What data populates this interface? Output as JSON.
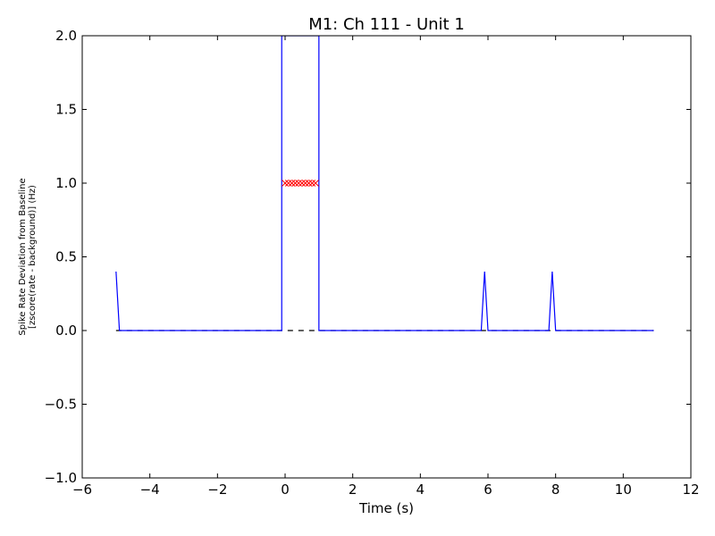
{
  "chart_data": {
    "type": "line",
    "title": "M1: Ch 111 - Unit 1",
    "xlabel": "Time (s)",
    "ylabel_lines": [
      "Spike Rate Deviation from Baseline",
      "[zscore(rate - background)] (Hz)"
    ],
    "xlim": [
      -6,
      12
    ],
    "ylim": [
      -1.0,
      2.0
    ],
    "xticks": [
      -6,
      -4,
      -2,
      0,
      2,
      4,
      6,
      8,
      10,
      12
    ],
    "xtick_labels": [
      "−6",
      "−4",
      "−2",
      "0",
      "2",
      "4",
      "6",
      "8",
      "10",
      "12"
    ],
    "yticks": [
      -1.0,
      -0.5,
      0.0,
      0.5,
      1.0,
      1.5,
      2.0
    ],
    "ytick_labels": [
      "−1.0",
      "−0.5",
      "0.0",
      "0.5",
      "1.0",
      "1.5",
      "2.0"
    ],
    "grid": false,
    "series": [
      {
        "style": "solid-line",
        "color": "#0000ff",
        "x": [
          -5.0,
          -4.9,
          -4.8,
          -0.1,
          -0.1,
          1.0,
          1.0,
          1.1,
          5.8,
          5.9,
          6.0,
          7.8,
          7.9,
          8.0,
          10.9
        ],
        "y": [
          0.4,
          0.0,
          0.0,
          0.0,
          2.0,
          2.0,
          0.0,
          0.0,
          0.0,
          0.4,
          0.0,
          0.0,
          0.4,
          0.0,
          0.0
        ]
      },
      {
        "style": "dashed-line",
        "color": "#000000",
        "x": [
          -5.0,
          10.9
        ],
        "y": [
          0.0,
          0.0
        ]
      },
      {
        "style": "x-markers",
        "color": "#ff0000",
        "x": [
          0.0,
          0.1,
          0.2,
          0.3,
          0.4,
          0.5,
          0.6,
          0.7,
          0.8,
          0.9
        ],
        "y": [
          1.0,
          1.0,
          1.0,
          1.0,
          1.0,
          1.0,
          1.0,
          1.0,
          1.0,
          1.0
        ]
      }
    ]
  }
}
